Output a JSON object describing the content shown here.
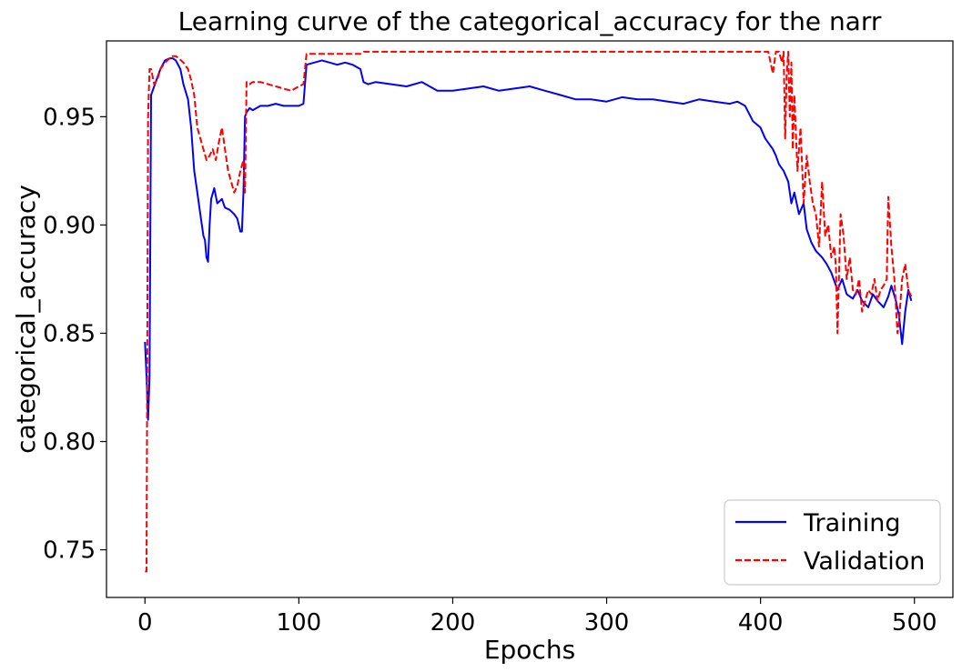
{
  "chart_data": {
    "type": "line",
    "title": "Learning curve of the categorical_accuracy for the narr",
    "xlabel": "Epochs",
    "ylabel": "categorical_accuracy",
    "xlim": [
      -25,
      525
    ],
    "ylim": [
      0.728,
      0.985
    ],
    "x_ticks": [
      0,
      100,
      200,
      300,
      400,
      500
    ],
    "x_tick_labels": [
      "0",
      "100",
      "200",
      "300",
      "400",
      "500"
    ],
    "y_ticks": [
      0.75,
      0.8,
      0.85,
      0.9,
      0.95
    ],
    "y_tick_labels": [
      "0.75",
      "0.80",
      "0.85",
      "0.90",
      "0.95"
    ],
    "grid": false,
    "legend_position": "lower-right",
    "series": [
      {
        "name": "Training",
        "color": "#0000ff",
        "dash": "solid",
        "x": [
          0,
          1,
          2,
          3,
          4,
          5,
          7,
          10,
          13,
          16,
          18,
          20,
          23,
          25,
          28,
          30,
          32,
          34,
          36,
          38,
          39,
          40,
          41,
          42,
          43,
          45,
          47,
          50,
          52,
          55,
          58,
          60,
          62,
          63,
          64,
          65,
          66,
          68,
          70,
          75,
          80,
          85,
          90,
          95,
          100,
          103,
          105,
          110,
          115,
          120,
          125,
          130,
          135,
          140,
          142,
          145,
          150,
          160,
          170,
          180,
          190,
          200,
          210,
          220,
          230,
          240,
          250,
          260,
          270,
          280,
          290,
          300,
          310,
          320,
          330,
          340,
          350,
          360,
          370,
          380,
          385,
          390,
          395,
          400,
          403,
          405,
          408,
          410,
          412,
          415,
          418,
          420,
          422,
          425,
          428,
          430,
          433,
          436,
          440,
          443,
          446,
          450,
          453,
          456,
          460,
          463,
          466,
          470,
          473,
          476,
          480,
          483,
          485,
          488,
          490,
          492,
          494,
          496,
          498
        ],
        "y": [
          0.846,
          0.83,
          0.81,
          0.83,
          0.96,
          0.962,
          0.966,
          0.972,
          0.976,
          0.977,
          0.977,
          0.976,
          0.972,
          0.965,
          0.958,
          0.945,
          0.925,
          0.915,
          0.905,
          0.895,
          0.893,
          0.885,
          0.883,
          0.9,
          0.912,
          0.917,
          0.91,
          0.912,
          0.908,
          0.907,
          0.905,
          0.903,
          0.897,
          0.897,
          0.915,
          0.95,
          0.952,
          0.954,
          0.953,
          0.955,
          0.955,
          0.956,
          0.955,
          0.955,
          0.955,
          0.956,
          0.974,
          0.975,
          0.976,
          0.975,
          0.974,
          0.975,
          0.974,
          0.972,
          0.966,
          0.965,
          0.966,
          0.965,
          0.964,
          0.966,
          0.962,
          0.962,
          0.963,
          0.964,
          0.962,
          0.963,
          0.964,
          0.962,
          0.96,
          0.958,
          0.958,
          0.957,
          0.959,
          0.958,
          0.958,
          0.957,
          0.956,
          0.958,
          0.957,
          0.956,
          0.957,
          0.955,
          0.948,
          0.945,
          0.94,
          0.938,
          0.935,
          0.932,
          0.928,
          0.925,
          0.92,
          0.91,
          0.915,
          0.905,
          0.91,
          0.898,
          0.892,
          0.888,
          0.885,
          0.882,
          0.878,
          0.87,
          0.875,
          0.868,
          0.866,
          0.87,
          0.865,
          0.862,
          0.868,
          0.865,
          0.862,
          0.867,
          0.872,
          0.865,
          0.858,
          0.845,
          0.86,
          0.87,
          0.865
        ]
      },
      {
        "name": "Validation",
        "color": "#ff0000",
        "dash": "dashed",
        "x": [
          0,
          1,
          2,
          3,
          4,
          6,
          8,
          10,
          13,
          16,
          18,
          20,
          22,
          25,
          28,
          30,
          32,
          34,
          36,
          38,
          40,
          42,
          44,
          46,
          48,
          50,
          52,
          54,
          56,
          58,
          60,
          62,
          64,
          65,
          66,
          68,
          70,
          75,
          80,
          85,
          90,
          95,
          100,
          103,
          105,
          110,
          120,
          130,
          140,
          142,
          150,
          200,
          250,
          300,
          350,
          400,
          405,
          408,
          410,
          412,
          414,
          415,
          416,
          417,
          418,
          419,
          420,
          421,
          422,
          424,
          426,
          428,
          430,
          432,
          434,
          436,
          438,
          440,
          442,
          444,
          446,
          448,
          449,
          450,
          452,
          454,
          456,
          458,
          460,
          462,
          464,
          466,
          468,
          470,
          472,
          474,
          476,
          478,
          480,
          482,
          483,
          485,
          487,
          489,
          490,
          492,
          494,
          496,
          498
        ],
        "y": [
          0.74,
          0.74,
          0.95,
          0.972,
          0.972,
          0.965,
          0.967,
          0.972,
          0.975,
          0.977,
          0.978,
          0.978,
          0.977,
          0.975,
          0.972,
          0.967,
          0.96,
          0.945,
          0.94,
          0.935,
          0.93,
          0.932,
          0.935,
          0.93,
          0.938,
          0.945,
          0.935,
          0.925,
          0.92,
          0.915,
          0.918,
          0.925,
          0.93,
          0.915,
          0.966,
          0.965,
          0.966,
          0.966,
          0.965,
          0.964,
          0.963,
          0.962,
          0.964,
          0.965,
          0.979,
          0.979,
          0.979,
          0.979,
          0.979,
          0.98,
          0.98,
          0.98,
          0.98,
          0.98,
          0.98,
          0.98,
          0.98,
          0.97,
          0.98,
          0.98,
          0.975,
          0.98,
          0.94,
          0.97,
          0.98,
          0.95,
          0.975,
          0.935,
          0.96,
          0.925,
          0.945,
          0.91,
          0.932,
          0.92,
          0.91,
          0.905,
          0.89,
          0.92,
          0.895,
          0.9,
          0.885,
          0.89,
          0.88,
          0.85,
          0.905,
          0.895,
          0.875,
          0.885,
          0.87,
          0.868,
          0.875,
          0.86,
          0.865,
          0.87,
          0.868,
          0.875,
          0.865,
          0.87,
          0.872,
          0.875,
          0.913,
          0.89,
          0.875,
          0.85,
          0.855,
          0.875,
          0.882,
          0.87,
          0.867
        ]
      }
    ]
  }
}
